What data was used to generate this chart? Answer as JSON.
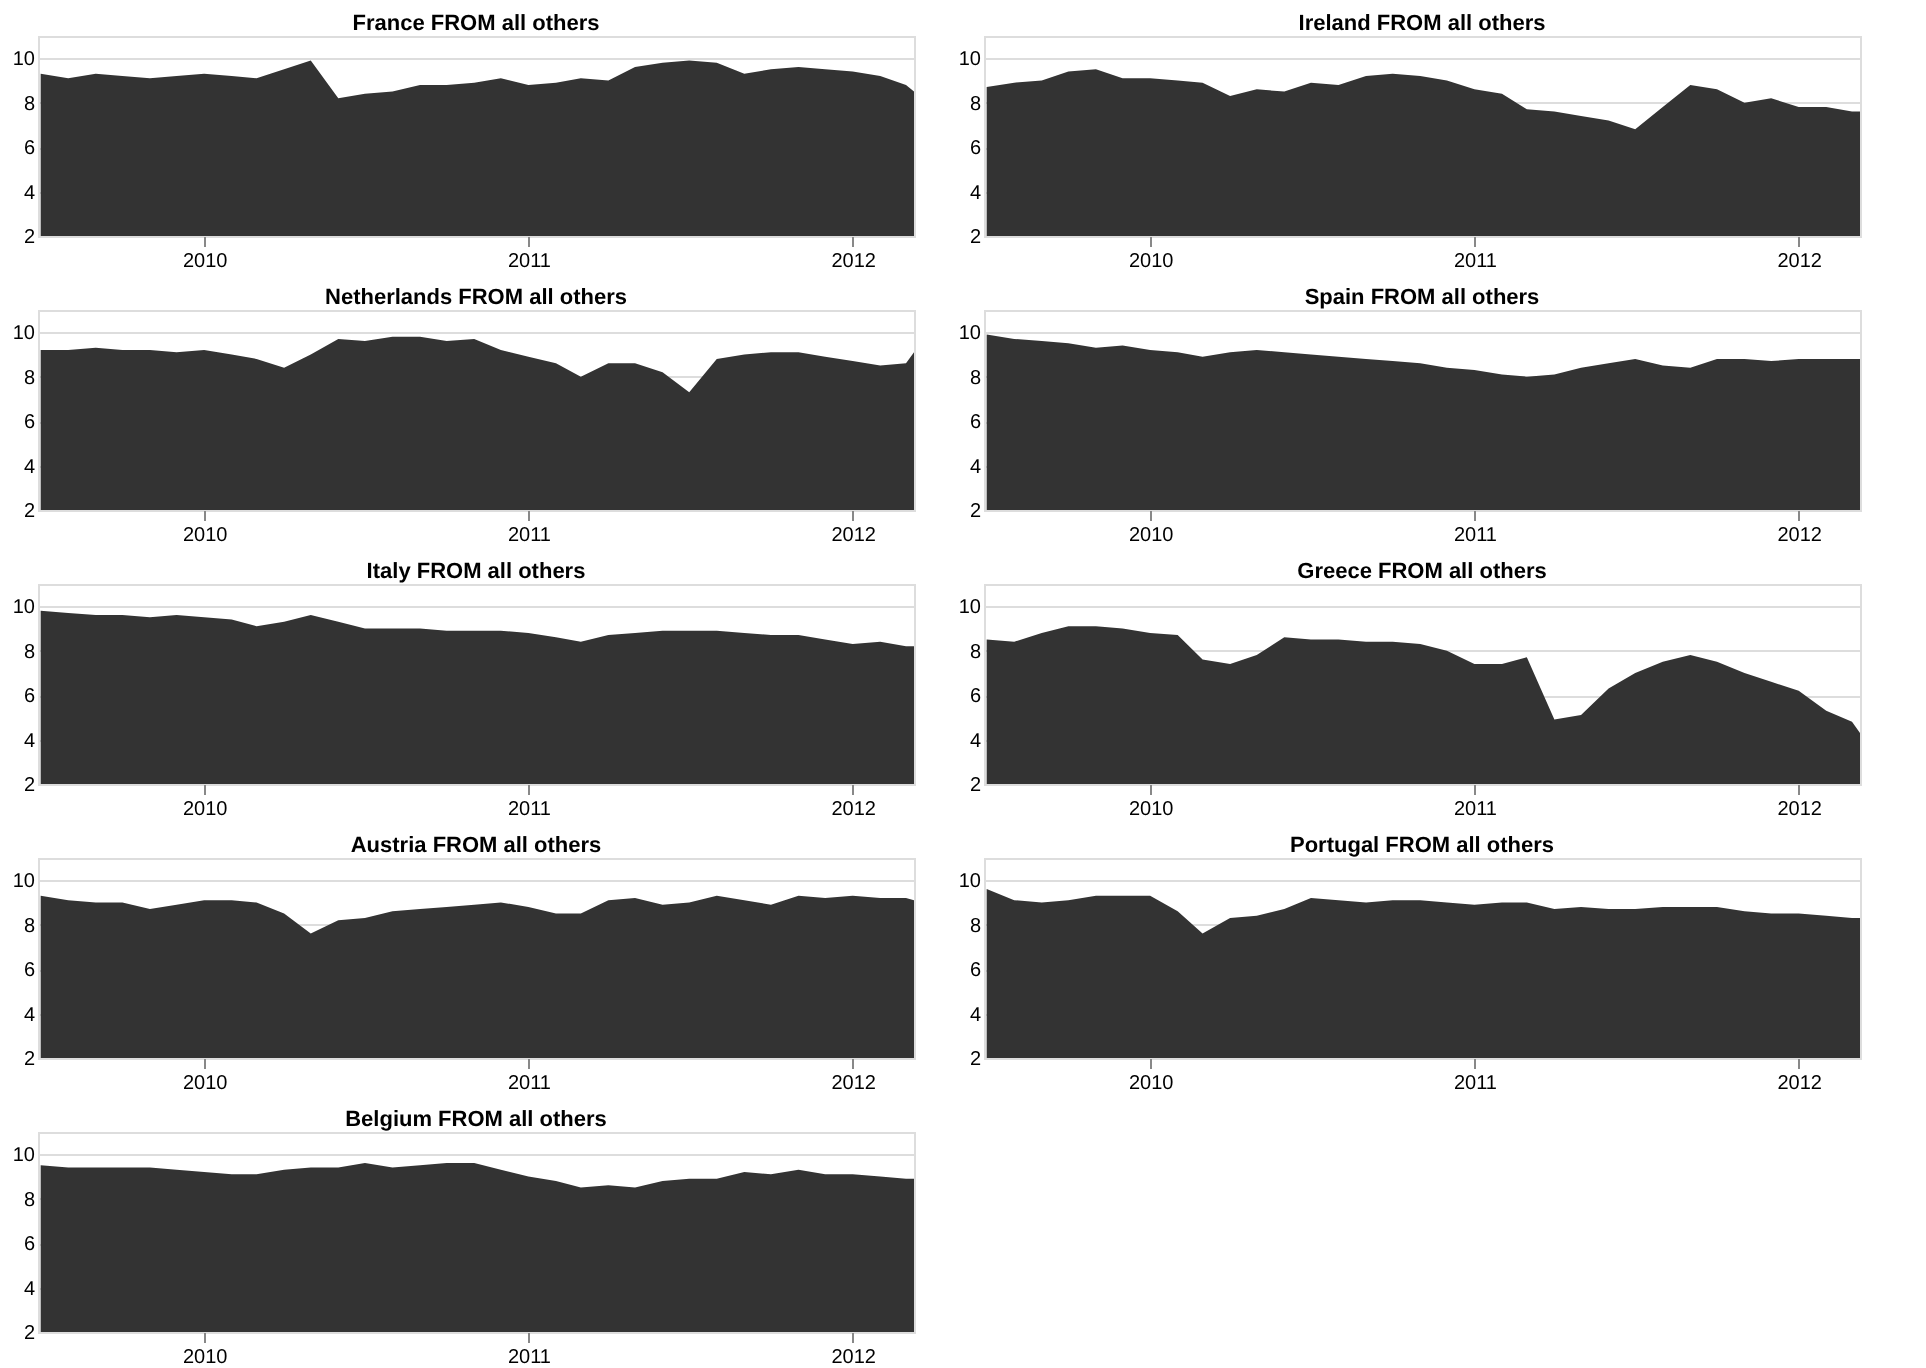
{
  "chart_data": [
    {
      "type": "area",
      "title": "France FROM all others",
      "color": "#333333",
      "xlim": [
        "2009-06-28",
        "2012-03-10"
      ],
      "ylim": [
        2,
        11
      ],
      "xticks": [
        "2010",
        "2011",
        "2012"
      ],
      "yticks": [
        2,
        4,
        6,
        8,
        10
      ],
      "grid": "y",
      "x": [
        "2009-07-01",
        "2009-08-01",
        "2009-09-01",
        "2009-10-01",
        "2009-11-01",
        "2009-12-01",
        "2010-01-01",
        "2010-02-01",
        "2010-03-01",
        "2010-04-01",
        "2010-05-01",
        "2010-06-01",
        "2010-07-01",
        "2010-08-01",
        "2010-09-01",
        "2010-10-01",
        "2010-11-01",
        "2010-12-01",
        "2011-01-01",
        "2011-02-01",
        "2011-03-01",
        "2011-04-01",
        "2011-05-01",
        "2011-06-01",
        "2011-07-01",
        "2011-08-01",
        "2011-09-01",
        "2011-10-01",
        "2011-11-01",
        "2011-12-01",
        "2012-01-01",
        "2012-02-01",
        "2012-03-01",
        "2012-03-10"
      ],
      "values": [
        9.3,
        9.1,
        9.3,
        9.2,
        9.1,
        9.2,
        9.3,
        9.2,
        9.1,
        9.5,
        9.9,
        8.2,
        8.4,
        8.5,
        8.8,
        8.8,
        8.9,
        9.1,
        8.8,
        8.9,
        9.1,
        9.0,
        9.6,
        9.8,
        9.9,
        9.8,
        9.3,
        9.5,
        9.6,
        9.5,
        9.4,
        9.2,
        8.8,
        8.5
      ]
    },
    {
      "type": "area",
      "title": "Ireland FROM all others",
      "color": "#333333",
      "xlim": [
        "2009-06-28",
        "2012-03-10"
      ],
      "ylim": [
        2,
        11
      ],
      "xticks": [
        "2010",
        "2011",
        "2012"
      ],
      "yticks": [
        2,
        4,
        6,
        8,
        10
      ],
      "grid": "y",
      "x": [
        "2009-07-01",
        "2009-08-01",
        "2009-09-01",
        "2009-10-01",
        "2009-11-01",
        "2009-12-01",
        "2010-01-01",
        "2010-02-01",
        "2010-03-01",
        "2010-04-01",
        "2010-05-01",
        "2010-06-01",
        "2010-07-01",
        "2010-08-01",
        "2010-09-01",
        "2010-10-01",
        "2010-11-01",
        "2010-12-01",
        "2011-01-01",
        "2011-02-01",
        "2011-03-01",
        "2011-04-01",
        "2011-05-01",
        "2011-06-01",
        "2011-07-01",
        "2011-08-01",
        "2011-09-01",
        "2011-10-01",
        "2011-11-01",
        "2011-12-01",
        "2012-01-01",
        "2012-02-01",
        "2012-03-01",
        "2012-03-10"
      ],
      "values": [
        8.7,
        8.9,
        9.0,
        9.4,
        9.5,
        9.1,
        9.1,
        9.0,
        8.9,
        8.3,
        8.6,
        8.5,
        8.9,
        8.8,
        9.2,
        9.3,
        9.2,
        9.0,
        8.6,
        8.4,
        7.7,
        7.6,
        7.4,
        7.2,
        6.8,
        7.8,
        8.8,
        8.6,
        8.0,
        8.2,
        7.8,
        7.8,
        7.6,
        7.6
      ]
    },
    {
      "type": "area",
      "title": "Netherlands FROM all others",
      "color": "#333333",
      "xlim": [
        "2009-06-28",
        "2012-03-10"
      ],
      "ylim": [
        2,
        11
      ],
      "xticks": [
        "2010",
        "2011",
        "2012"
      ],
      "yticks": [
        2,
        4,
        6,
        8,
        10
      ],
      "grid": "y",
      "x": [
        "2009-07-01",
        "2009-08-01",
        "2009-09-01",
        "2009-10-01",
        "2009-11-01",
        "2009-12-01",
        "2010-01-01",
        "2010-02-01",
        "2010-03-01",
        "2010-04-01",
        "2010-05-01",
        "2010-06-01",
        "2010-07-01",
        "2010-08-01",
        "2010-09-01",
        "2010-10-01",
        "2010-11-01",
        "2010-12-01",
        "2011-01-01",
        "2011-02-01",
        "2011-03-01",
        "2011-04-01",
        "2011-05-01",
        "2011-06-01",
        "2011-07-01",
        "2011-08-01",
        "2011-09-01",
        "2011-10-01",
        "2011-11-01",
        "2011-12-01",
        "2012-01-01",
        "2012-02-01",
        "2012-03-01",
        "2012-03-10"
      ],
      "values": [
        9.2,
        9.2,
        9.3,
        9.2,
        9.2,
        9.1,
        9.2,
        9.0,
        8.8,
        8.4,
        9.0,
        9.7,
        9.6,
        9.8,
        9.8,
        9.6,
        9.7,
        9.2,
        8.9,
        8.6,
        8.0,
        8.6,
        8.6,
        8.2,
        7.3,
        8.8,
        9.0,
        9.1,
        9.1,
        8.9,
        8.7,
        8.5,
        8.6,
        9.1
      ]
    },
    {
      "type": "area",
      "title": "Spain FROM all others",
      "color": "#333333",
      "xlim": [
        "2009-06-28",
        "2012-03-10"
      ],
      "ylim": [
        2,
        11
      ],
      "xticks": [
        "2010",
        "2011",
        "2012"
      ],
      "yticks": [
        2,
        4,
        6,
        8,
        10
      ],
      "grid": "y",
      "x": [
        "2009-07-01",
        "2009-08-01",
        "2009-09-01",
        "2009-10-01",
        "2009-11-01",
        "2009-12-01",
        "2010-01-01",
        "2010-02-01",
        "2010-03-01",
        "2010-04-01",
        "2010-05-01",
        "2010-06-01",
        "2010-07-01",
        "2010-08-01",
        "2010-09-01",
        "2010-10-01",
        "2010-11-01",
        "2010-12-01",
        "2011-01-01",
        "2011-02-01",
        "2011-03-01",
        "2011-04-01",
        "2011-05-01",
        "2011-06-01",
        "2011-07-01",
        "2011-08-01",
        "2011-09-01",
        "2011-10-01",
        "2011-11-01",
        "2011-12-01",
        "2012-01-01",
        "2012-02-01",
        "2012-03-01",
        "2012-03-10"
      ],
      "values": [
        9.9,
        9.7,
        9.6,
        9.5,
        9.3,
        9.4,
        9.2,
        9.1,
        8.9,
        9.1,
        9.2,
        9.1,
        9.0,
        8.9,
        8.8,
        8.7,
        8.6,
        8.4,
        8.3,
        8.1,
        8.0,
        8.1,
        8.4,
        8.6,
        8.8,
        8.5,
        8.4,
        8.8,
        8.8,
        8.7,
        8.8,
        8.8,
        8.8,
        8.8
      ]
    },
    {
      "type": "area",
      "title": "Italy FROM all others",
      "color": "#333333",
      "xlim": [
        "2009-06-28",
        "2012-03-10"
      ],
      "ylim": [
        2,
        11
      ],
      "xticks": [
        "2010",
        "2011",
        "2012"
      ],
      "yticks": [
        2,
        4,
        6,
        8,
        10
      ],
      "grid": "y",
      "x": [
        "2009-07-01",
        "2009-08-01",
        "2009-09-01",
        "2009-10-01",
        "2009-11-01",
        "2009-12-01",
        "2010-01-01",
        "2010-02-01",
        "2010-03-01",
        "2010-04-01",
        "2010-05-01",
        "2010-06-01",
        "2010-07-01",
        "2010-08-01",
        "2010-09-01",
        "2010-10-01",
        "2010-11-01",
        "2010-12-01",
        "2011-01-01",
        "2011-02-01",
        "2011-03-01",
        "2011-04-01",
        "2011-05-01",
        "2011-06-01",
        "2011-07-01",
        "2011-08-01",
        "2011-09-01",
        "2011-10-01",
        "2011-11-01",
        "2011-12-01",
        "2012-01-01",
        "2012-02-01",
        "2012-03-01",
        "2012-03-10"
      ],
      "values": [
        9.8,
        9.7,
        9.6,
        9.6,
        9.5,
        9.6,
        9.5,
        9.4,
        9.1,
        9.3,
        9.6,
        9.3,
        9.0,
        9.0,
        9.0,
        8.9,
        8.9,
        8.9,
        8.8,
        8.6,
        8.4,
        8.7,
        8.8,
        8.9,
        8.9,
        8.9,
        8.8,
        8.7,
        8.7,
        8.5,
        8.3,
        8.4,
        8.2,
        8.2
      ]
    },
    {
      "type": "area",
      "title": "Greece FROM all others",
      "color": "#333333",
      "xlim": [
        "2009-06-28",
        "2012-03-10"
      ],
      "ylim": [
        2,
        11
      ],
      "xticks": [
        "2010",
        "2011",
        "2012"
      ],
      "yticks": [
        2,
        4,
        6,
        8,
        10
      ],
      "grid": "y",
      "x": [
        "2009-07-01",
        "2009-08-01",
        "2009-09-01",
        "2009-10-01",
        "2009-11-01",
        "2009-12-01",
        "2010-01-01",
        "2010-02-01",
        "2010-03-01",
        "2010-04-01",
        "2010-05-01",
        "2010-06-01",
        "2010-07-01",
        "2010-08-01",
        "2010-09-01",
        "2010-10-01",
        "2010-11-01",
        "2010-12-01",
        "2011-01-01",
        "2011-02-01",
        "2011-03-01",
        "2011-04-01",
        "2011-05-01",
        "2011-06-01",
        "2011-07-01",
        "2011-08-01",
        "2011-09-01",
        "2011-10-01",
        "2011-11-01",
        "2011-12-01",
        "2012-01-01",
        "2012-02-01",
        "2012-03-01",
        "2012-03-10"
      ],
      "values": [
        8.5,
        8.4,
        8.8,
        9.1,
        9.1,
        9.0,
        8.8,
        8.7,
        7.6,
        7.4,
        7.8,
        8.6,
        8.5,
        8.5,
        8.4,
        8.4,
        8.3,
        8.0,
        7.4,
        7.4,
        7.7,
        4.9,
        5.1,
        6.3,
        7.0,
        7.5,
        7.8,
        7.5,
        7.0,
        6.6,
        6.2,
        5.3,
        4.8,
        4.3
      ]
    },
    {
      "type": "area",
      "title": "Austria FROM all others",
      "color": "#333333",
      "xlim": [
        "2009-06-28",
        "2012-03-10"
      ],
      "ylim": [
        2,
        11
      ],
      "xticks": [
        "2010",
        "2011",
        "2012"
      ],
      "yticks": [
        2,
        4,
        6,
        8,
        10
      ],
      "grid": "y",
      "x": [
        "2009-07-01",
        "2009-08-01",
        "2009-09-01",
        "2009-10-01",
        "2009-11-01",
        "2009-12-01",
        "2010-01-01",
        "2010-02-01",
        "2010-03-01",
        "2010-04-01",
        "2010-05-01",
        "2010-06-01",
        "2010-07-01",
        "2010-08-01",
        "2010-09-01",
        "2010-10-01",
        "2010-11-01",
        "2010-12-01",
        "2011-01-01",
        "2011-02-01",
        "2011-03-01",
        "2011-04-01",
        "2011-05-01",
        "2011-06-01",
        "2011-07-01",
        "2011-08-01",
        "2011-09-01",
        "2011-10-01",
        "2011-11-01",
        "2011-12-01",
        "2012-01-01",
        "2012-02-01",
        "2012-03-01",
        "2012-03-10"
      ],
      "values": [
        9.3,
        9.1,
        9.0,
        9.0,
        8.7,
        8.9,
        9.1,
        9.1,
        9.0,
        8.5,
        7.6,
        8.2,
        8.3,
        8.6,
        8.7,
        8.8,
        8.9,
        9.0,
        8.8,
        8.5,
        8.5,
        9.1,
        9.2,
        8.9,
        9.0,
        9.3,
        9.1,
        8.9,
        9.3,
        9.2,
        9.3,
        9.2,
        9.2,
        9.1
      ]
    },
    {
      "type": "area",
      "title": "Portugal FROM all others",
      "color": "#333333",
      "xlim": [
        "2009-06-28",
        "2012-03-10"
      ],
      "ylim": [
        2,
        11
      ],
      "xticks": [
        "2010",
        "2011",
        "2012"
      ],
      "yticks": [
        2,
        4,
        6,
        8,
        10
      ],
      "grid": "y",
      "x": [
        "2009-07-01",
        "2009-08-01",
        "2009-09-01",
        "2009-10-01",
        "2009-11-01",
        "2009-12-01",
        "2010-01-01",
        "2010-02-01",
        "2010-03-01",
        "2010-04-01",
        "2010-05-01",
        "2010-06-01",
        "2010-07-01",
        "2010-08-01",
        "2010-09-01",
        "2010-10-01",
        "2010-11-01",
        "2010-12-01",
        "2011-01-01",
        "2011-02-01",
        "2011-03-01",
        "2011-04-01",
        "2011-05-01",
        "2011-06-01",
        "2011-07-01",
        "2011-08-01",
        "2011-09-01",
        "2011-10-01",
        "2011-11-01",
        "2011-12-01",
        "2012-01-01",
        "2012-02-01",
        "2012-03-01",
        "2012-03-10"
      ],
      "values": [
        9.6,
        9.1,
        9.0,
        9.1,
        9.3,
        9.3,
        9.3,
        8.6,
        7.6,
        8.3,
        8.4,
        8.7,
        9.2,
        9.1,
        9.0,
        9.1,
        9.1,
        9.0,
        8.9,
        9.0,
        9.0,
        8.7,
        8.8,
        8.7,
        8.7,
        8.8,
        8.8,
        8.8,
        8.6,
        8.5,
        8.5,
        8.4,
        8.3,
        8.3
      ]
    },
    {
      "type": "area",
      "title": "Belgium FROM all others",
      "color": "#333333",
      "xlim": [
        "2009-06-28",
        "2012-03-10"
      ],
      "ylim": [
        2,
        11
      ],
      "xticks": [
        "2010",
        "2011",
        "2012"
      ],
      "yticks": [
        2,
        4,
        6,
        8,
        10
      ],
      "grid": "y",
      "x": [
        "2009-07-01",
        "2009-08-01",
        "2009-09-01",
        "2009-10-01",
        "2009-11-01",
        "2009-12-01",
        "2010-01-01",
        "2010-02-01",
        "2010-03-01",
        "2010-04-01",
        "2010-05-01",
        "2010-06-01",
        "2010-07-01",
        "2010-08-01",
        "2010-09-01",
        "2010-10-01",
        "2010-11-01",
        "2010-12-01",
        "2011-01-01",
        "2011-02-01",
        "2011-03-01",
        "2011-04-01",
        "2011-05-01",
        "2011-06-01",
        "2011-07-01",
        "2011-08-01",
        "2011-09-01",
        "2011-10-01",
        "2011-11-01",
        "2011-12-01",
        "2012-01-01",
        "2012-02-01",
        "2012-03-01",
        "2012-03-10"
      ],
      "values": [
        9.5,
        9.4,
        9.4,
        9.4,
        9.4,
        9.3,
        9.2,
        9.1,
        9.1,
        9.3,
        9.4,
        9.4,
        9.6,
        9.4,
        9.5,
        9.6,
        9.6,
        9.3,
        9.0,
        8.8,
        8.5,
        8.6,
        8.5,
        8.8,
        8.9,
        8.9,
        9.2,
        9.1,
        9.3,
        9.1,
        9.1,
        9.0,
        8.9,
        8.9
      ]
    }
  ]
}
